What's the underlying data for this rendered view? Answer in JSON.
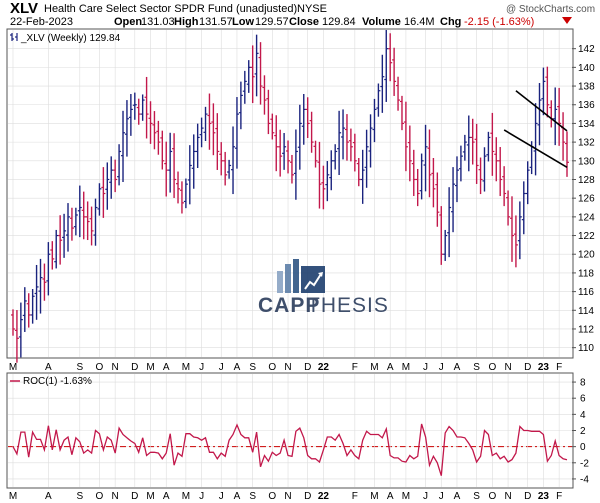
{
  "header": {
    "symbol": "XLV",
    "name": "Health Care Select Sector SPDR Fund (unadjusted)",
    "exchange": "NYSE",
    "copyright": "@ StockCharts.com",
    "date": "22-Feb-2023",
    "open_label": "Open",
    "open_value": "131.03",
    "high_label": "High",
    "high_value": "131.57",
    "low_label": "Low",
    "low_value": "129.57",
    "close_label": "Close",
    "close_value": "129.84",
    "volume_label": "Volume",
    "volume_value": "16.4M",
    "chg_label": "Chg",
    "chg_value": "-2.15 (-1.63%)"
  },
  "price_panel": {
    "legend": "_XLV (Weekly) 129.84",
    "ylim": [
      109,
      144
    ],
    "yticks": [
      110,
      112,
      114,
      116,
      118,
      120,
      122,
      124,
      126,
      128,
      130,
      132,
      134,
      136,
      138,
      140,
      142
    ],
    "channel_upper": [
      {
        "i": 128,
        "p": 137.5
      },
      {
        "i": 141,
        "p": 133.2
      }
    ],
    "channel_lower": [
      {
        "i": 125,
        "p": 133.3
      },
      {
        "i": 141,
        "p": 129.3
      }
    ]
  },
  "roc_panel": {
    "legend": "ROC(1) -1.63%",
    "ylim": [
      -5,
      9
    ],
    "yticks": [
      -4,
      -2,
      0,
      2,
      4,
      6,
      8
    ],
    "zero_line_color": "#cc0000"
  },
  "x_axis": {
    "total_weeks": 142,
    "labels": [
      {
        "i": 0,
        "t": "M",
        "bold": false
      },
      {
        "i": 9,
        "t": "A",
        "bold": false
      },
      {
        "i": 17,
        "t": "S",
        "bold": false
      },
      {
        "i": 22,
        "t": "O",
        "bold": false
      },
      {
        "i": 26,
        "t": "N",
        "bold": false
      },
      {
        "i": 31,
        "t": "D",
        "bold": false
      },
      {
        "i": 35,
        "t": "M",
        "bold": false
      },
      {
        "i": 39,
        "t": "A",
        "bold": false
      },
      {
        "i": 44,
        "t": "M",
        "bold": false
      },
      {
        "i": 48,
        "t": "J",
        "bold": false
      },
      {
        "i": 53,
        "t": "J",
        "bold": false
      },
      {
        "i": 57,
        "t": "A",
        "bold": false
      },
      {
        "i": 61,
        "t": "S",
        "bold": false
      },
      {
        "i": 66,
        "t": "O",
        "bold": false
      },
      {
        "i": 70,
        "t": "N",
        "bold": false
      },
      {
        "i": 75,
        "t": "D",
        "bold": false
      },
      {
        "i": 79,
        "t": "22",
        "bold": true
      },
      {
        "i": 87,
        "t": "F",
        "bold": false
      },
      {
        "i": 92,
        "t": "M",
        "bold": false
      },
      {
        "i": 96,
        "t": "A",
        "bold": false
      },
      {
        "i": 100,
        "t": "M",
        "bold": false
      },
      {
        "i": 105,
        "t": "J",
        "bold": false
      },
      {
        "i": 109,
        "t": "J",
        "bold": false
      },
      {
        "i": 113,
        "t": "A",
        "bold": false
      },
      {
        "i": 118,
        "t": "S",
        "bold": false
      },
      {
        "i": 122,
        "t": "O",
        "bold": false
      },
      {
        "i": 126,
        "t": "N",
        "bold": false
      },
      {
        "i": 131,
        "t": "D",
        "bold": false
      },
      {
        "i": 135,
        "t": "23",
        "bold": true
      },
      {
        "i": 139,
        "t": "F",
        "bold": false
      }
    ]
  },
  "watermark": {
    "word1": "CAPP",
    "word2": "THESIS"
  },
  "colors": {
    "up": "#1a237e",
    "down": "#c2184b",
    "channel": "#000000",
    "roc_line": "#c2184b",
    "grid": "#dddddd"
  },
  "chart_data": {
    "type": "ohlc",
    "title": "XLV Health Care Select Sector SPDR Fund (unadjusted) NYSE",
    "interval": "weekly",
    "period": "approx. Mar 2020 to 22-Feb-2023",
    "last_close": 129.84,
    "closes": [
      112.0,
      111.0,
      113.0,
      115.0,
      113.5,
      115.5,
      116.5,
      117.5,
      117.0,
      120.0,
      119.5,
      122.0,
      121.5,
      122.5,
      124.0,
      122.8,
      124.2,
      125.0,
      124.0,
      123.5,
      122.5,
      125.0,
      127.0,
      126.5,
      128.0,
      129.0,
      128.0,
      131.0,
      133.0,
      134.5,
      135.5,
      136.0,
      135.0,
      136.5,
      135.0,
      134.0,
      133.0,
      132.0,
      130.0,
      129.0,
      131.0,
      128.0,
      127.0,
      125.5,
      127.5,
      129.5,
      131.0,
      132.5,
      133.5,
      135.0,
      134.0,
      133.0,
      131.0,
      130.0,
      128.5,
      129.5,
      131.5,
      135.0,
      137.0,
      138.5,
      140.0,
      139.0,
      141.5,
      138.0,
      136.5,
      134.0,
      133.0,
      131.5,
      130.5,
      131.5,
      130.0,
      128.5,
      131.0,
      134.0,
      135.5,
      134.0,
      132.0,
      130.0,
      127.5,
      127.0,
      128.5,
      130.0,
      131.0,
      133.0,
      133.5,
      132.0,
      131.5,
      130.0,
      128.0,
      129.0,
      131.5,
      133.5,
      135.5,
      137.5,
      139.0,
      142.0,
      140.5,
      138.5,
      136.5,
      134.0,
      131.5,
      130.0,
      128.0,
      126.5,
      130.0,
      131.5,
      128.5,
      127.0,
      124.5,
      120.0,
      122.0,
      125.0,
      127.5,
      129.0,
      130.5,
      132.0,
      132.5,
      132.0,
      129.5,
      128.0,
      130.5,
      132.5,
      131.0,
      130.0,
      128.0,
      126.5,
      124.0,
      122.0,
      121.0,
      124.0,
      126.5,
      129.0,
      131.5,
      134.0,
      136.5,
      138.5,
      136.0,
      134.5,
      135.5,
      134.0,
      132.0,
      129.84
    ],
    "roc_percent": [
      0.0,
      -0.9,
      1.8,
      1.8,
      -1.3,
      1.8,
      0.9,
      0.9,
      -0.4,
      2.6,
      -0.4,
      2.1,
      -0.4,
      0.8,
      1.2,
      -1.0,
      1.1,
      0.6,
      -0.8,
      -0.4,
      -0.8,
      2.0,
      1.6,
      -0.4,
      1.2,
      0.8,
      -0.8,
      2.3,
      1.5,
      1.1,
      0.7,
      0.4,
      -0.7,
      1.1,
      -1.1,
      -0.7,
      -0.7,
      -0.8,
      -1.5,
      -0.8,
      1.6,
      -2.3,
      -0.8,
      -1.2,
      1.6,
      1.6,
      1.2,
      1.1,
      0.8,
      1.1,
      -0.7,
      -0.7,
      -1.5,
      -0.8,
      -1.2,
      0.8,
      1.5,
      2.7,
      1.5,
      1.1,
      1.1,
      -0.7,
      1.8,
      -2.5,
      -1.1,
      -1.8,
      -0.7,
      -1.1,
      -0.8,
      0.8,
      -1.1,
      -1.2,
      1.9,
      2.3,
      1.1,
      -1.1,
      -1.5,
      -1.5,
      -1.9,
      -0.4,
      1.2,
      1.2,
      0.8,
      1.5,
      0.4,
      -1.1,
      -0.4,
      -1.1,
      -1.5,
      0.8,
      1.9,
      1.5,
      1.5,
      1.5,
      1.1,
      2.2,
      -1.1,
      -1.4,
      -1.4,
      -1.8,
      -1.9,
      -1.1,
      -1.5,
      -1.2,
      2.8,
      1.2,
      -2.3,
      -1.2,
      -2.0,
      -3.6,
      1.7,
      2.5,
      2.0,
      1.2,
      1.2,
      1.1,
      0.4,
      -0.4,
      -1.9,
      -1.2,
      2.0,
      1.5,
      -1.1,
      -0.8,
      -1.5,
      -1.2,
      -1.9,
      -1.6,
      -0.8,
      2.5,
      2.0,
      2.0,
      1.9,
      1.9,
      1.9,
      1.5,
      -1.8,
      -1.1,
      0.7,
      -1.1,
      -1.5,
      -1.63
    ],
    "ylim_price": [
      109,
      144
    ],
    "ylim_roc": [
      -5,
      9
    ]
  }
}
